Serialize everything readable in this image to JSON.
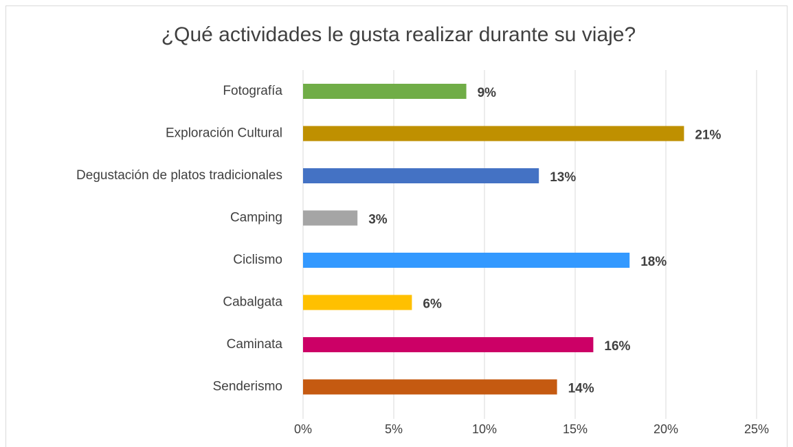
{
  "chart_data": {
    "type": "bar",
    "orientation": "horizontal",
    "title": "¿Qué actividades le gusta realizar durante su viaje?",
    "categories": [
      "Fotografía",
      "Exploración Cultural",
      "Degustación de platos tradicionales",
      "Camping",
      "Ciclismo",
      "Cabalgata",
      "Caminata",
      "Senderismo"
    ],
    "values": [
      9,
      21,
      13,
      3,
      18,
      6,
      16,
      14
    ],
    "value_labels": [
      "9%",
      "21%",
      "13%",
      "3%",
      "18%",
      "6%",
      "16%",
      "14%"
    ],
    "colors": [
      "#70ad47",
      "#bf9000",
      "#4472c4",
      "#a5a5a5",
      "#3399ff",
      "#ffc000",
      "#cc0066",
      "#c55a11"
    ],
    "xlim": [
      0,
      25
    ],
    "xticks": [
      {
        "value": 0,
        "label": "0%"
      },
      {
        "value": 5,
        "label": "5%"
      },
      {
        "value": 10,
        "label": "10%"
      },
      {
        "value": 15,
        "label": "15%"
      },
      {
        "value": 20,
        "label": "20%"
      },
      {
        "value": 25,
        "label": "25%"
      }
    ],
    "grid": true
  }
}
